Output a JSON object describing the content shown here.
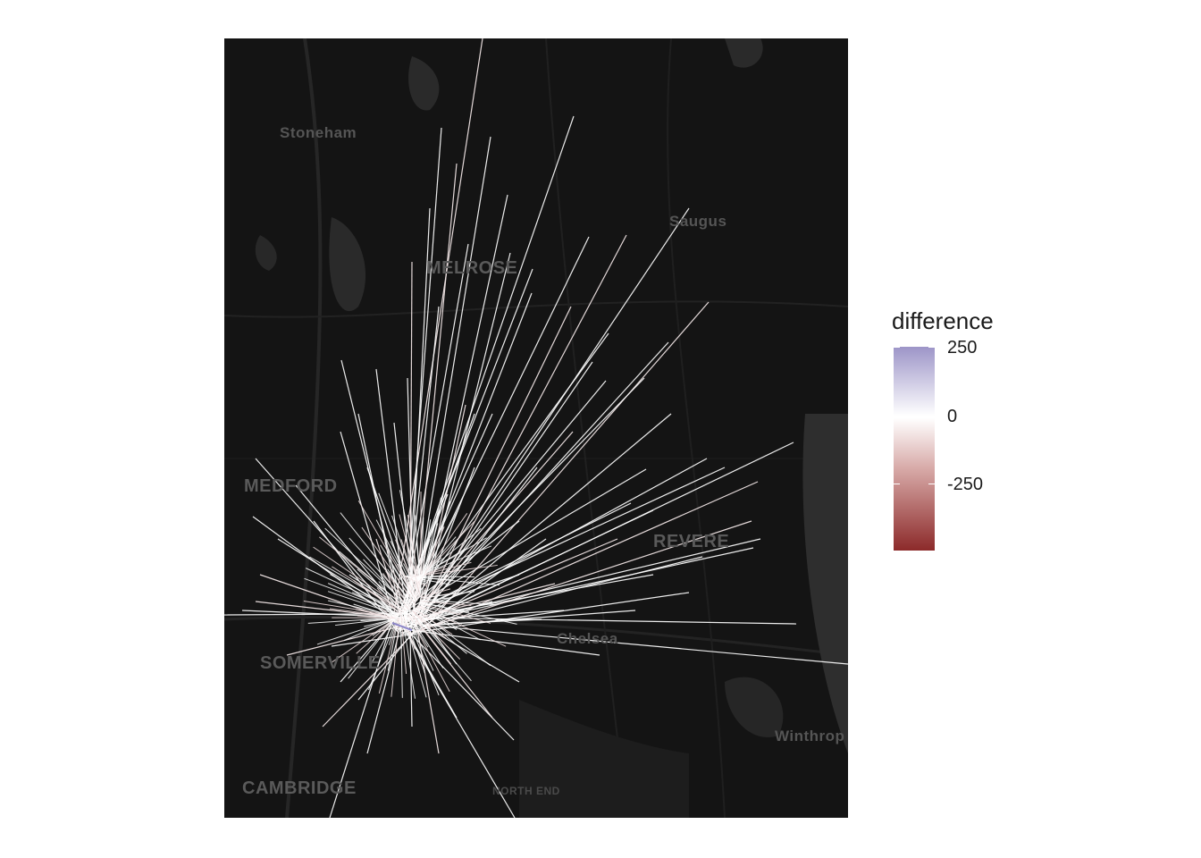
{
  "map": {
    "places": [
      {
        "name": "Stoneham",
        "cls": "small"
      },
      {
        "name": "Saugus",
        "cls": "small"
      },
      {
        "name": "MELROSE",
        "cls": ""
      },
      {
        "name": "MEDFORD",
        "cls": ""
      },
      {
        "name": "REVERE",
        "cls": ""
      },
      {
        "name": "Chelsea",
        "cls": "small"
      },
      {
        "name": "SOMERVILLE",
        "cls": ""
      },
      {
        "name": "Winthrop",
        "cls": "small"
      },
      {
        "name": "CAMBRIDGE",
        "cls": ""
      },
      {
        "name": "NORTH END",
        "cls": "tiny"
      }
    ]
  },
  "legend": {
    "title": "difference",
    "ticks": [
      "250",
      "0",
      "-250"
    ],
    "colors": {
      "high": "#9d95c8",
      "mid": "#ffffff",
      "low": "#8c2a2a"
    }
  }
}
